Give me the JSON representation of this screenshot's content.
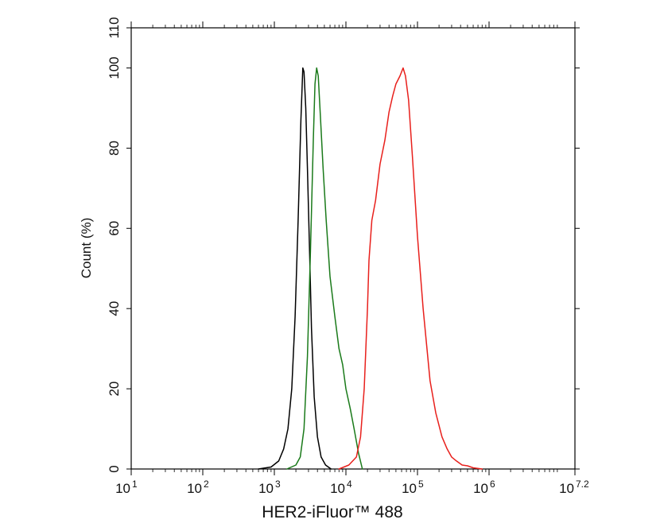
{
  "chart_data": {
    "type": "line",
    "xlabel": "HER2-iFluor™ 488",
    "ylabel": "Count  (%)",
    "x_scale": "log",
    "xlim": [
      10,
      15848932
    ],
    "ylim": [
      0,
      110
    ],
    "x_ticks": [
      {
        "base": "10",
        "exp": "1",
        "value": 10
      },
      {
        "base": "10",
        "exp": "2",
        "value": 100
      },
      {
        "base": "10",
        "exp": "3",
        "value": 1000
      },
      {
        "base": "10",
        "exp": "4",
        "value": 10000
      },
      {
        "base": "10",
        "exp": "5",
        "value": 100000
      },
      {
        "base": "10",
        "exp": "6",
        "value": 1000000
      },
      {
        "base": "10",
        "exp": "7.2",
        "value": 15848932
      }
    ],
    "y_ticks": [
      {
        "label": "0",
        "value": 0
      },
      {
        "label": "20",
        "value": 20
      },
      {
        "label": "40",
        "value": 40
      },
      {
        "label": "60",
        "value": 60
      },
      {
        "label": "80",
        "value": 80
      },
      {
        "label": "100",
        "value": 100
      },
      {
        "label": "110",
        "value": 110
      }
    ],
    "grid": false,
    "legend": "none",
    "series": [
      {
        "color": "#000000",
        "x": [
          600,
          900,
          1150,
          1350,
          1550,
          1750,
          1950,
          2150,
          2350,
          2500,
          2600,
          2750,
          2900,
          3100,
          3300,
          3600,
          4000,
          4500,
          5200,
          6200
        ],
        "y": [
          0,
          0.5,
          2,
          5,
          10,
          20,
          38,
          62,
          87,
          100,
          99,
          90,
          75,
          55,
          35,
          18,
          8,
          3,
          1,
          0
        ]
      },
      {
        "color": "#1a7a1a",
        "x": [
          1500,
          2000,
          2300,
          2600,
          2900,
          3200,
          3500,
          3700,
          3900,
          4100,
          4400,
          4800,
          5300,
          6000,
          7000,
          8000,
          9000,
          10000,
          11500,
          13000,
          15000,
          17000
        ],
        "y": [
          0,
          1,
          3,
          10,
          28,
          55,
          82,
          96,
          100,
          98,
          88,
          75,
          62,
          48,
          38,
          30,
          26,
          20,
          15,
          10,
          4,
          0
        ]
      },
      {
        "color": "#e8201c",
        "x": [
          8000,
          11000,
          14000,
          16000,
          18000,
          20000,
          21000,
          23000,
          26000,
          30000,
          35000,
          40000,
          45000,
          50000,
          57000,
          63000,
          68000,
          75000,
          85000,
          100000,
          120000,
          150000,
          180000,
          220000,
          260000,
          300000,
          350000,
          420000,
          500000,
          600000,
          800000
        ],
        "y": [
          0,
          1,
          3,
          8,
          20,
          40,
          52,
          62,
          67,
          76,
          82,
          89,
          93,
          96,
          98,
          100,
          98,
          92,
          78,
          58,
          40,
          22,
          14,
          8,
          5,
          3,
          2,
          1,
          0.8,
          0.3,
          0
        ]
      }
    ]
  }
}
